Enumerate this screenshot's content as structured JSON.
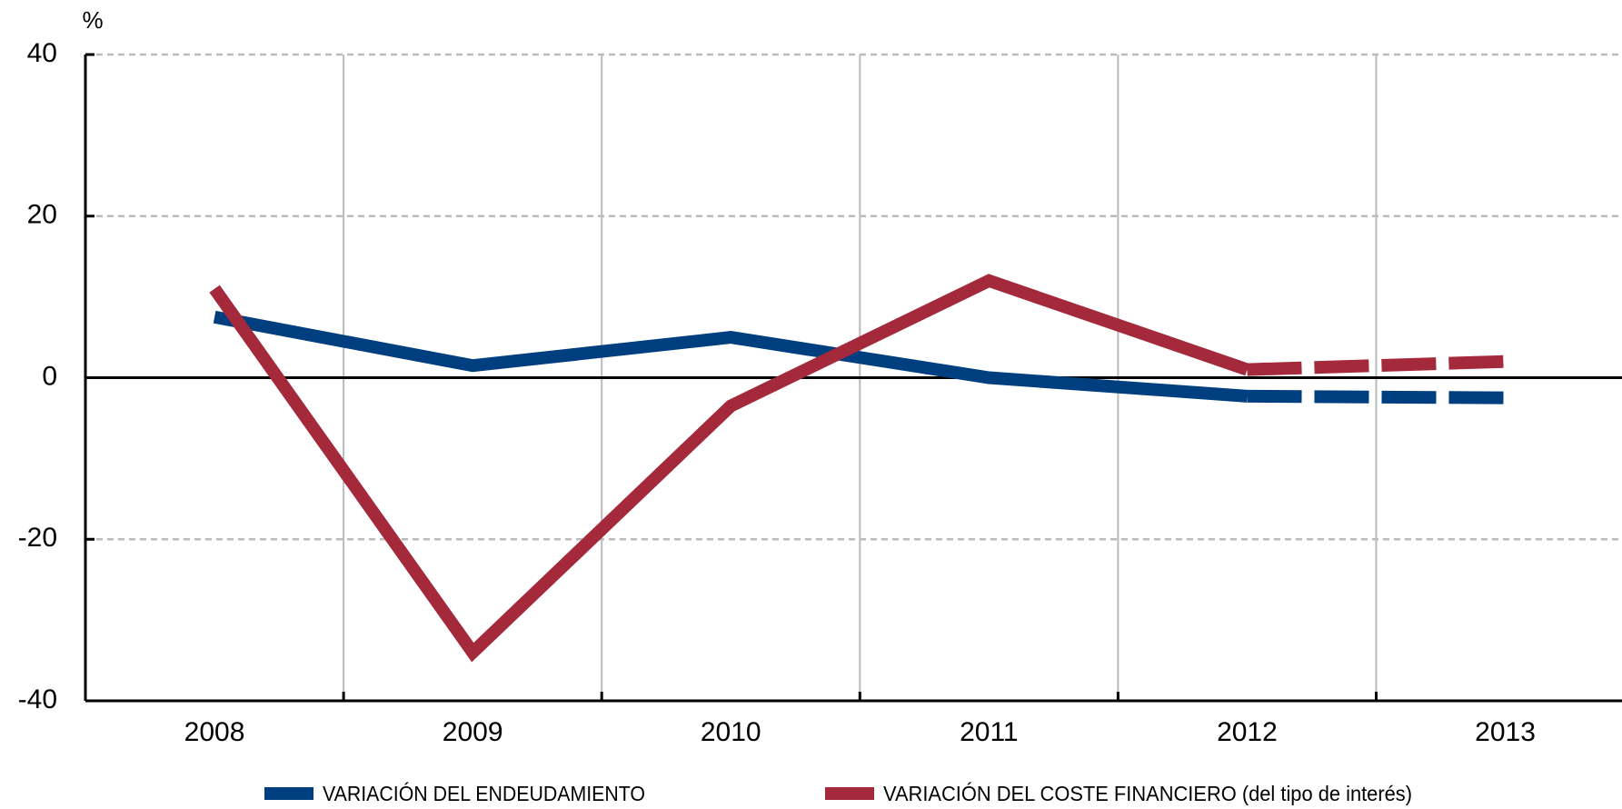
{
  "chart_data": {
    "type": "line",
    "y_label": "%",
    "categories": [
      "2008",
      "2009",
      "2010",
      "2011",
      "2012",
      "2013"
    ],
    "series": [
      {
        "name": "VARIACIÓN DEL ENDEUDAMIENTO",
        "color": "#003f7f",
        "values": [
          7.5,
          1.5,
          5,
          0,
          -2.3,
          -2.5
        ],
        "dashed_from": 4
      },
      {
        "name": "VARIACIÓN DEL COSTE FINANCIERO (del tipo de interés)",
        "color": "#a4293a",
        "values": [
          11,
          -34,
          -3.5,
          12,
          1,
          2
        ],
        "dashed_from": 4
      }
    ],
    "ylim": [
      -40,
      40
    ],
    "yticks": [
      -40,
      -20,
      0,
      20,
      40
    ],
    "grid": true,
    "legend": "bottom"
  }
}
